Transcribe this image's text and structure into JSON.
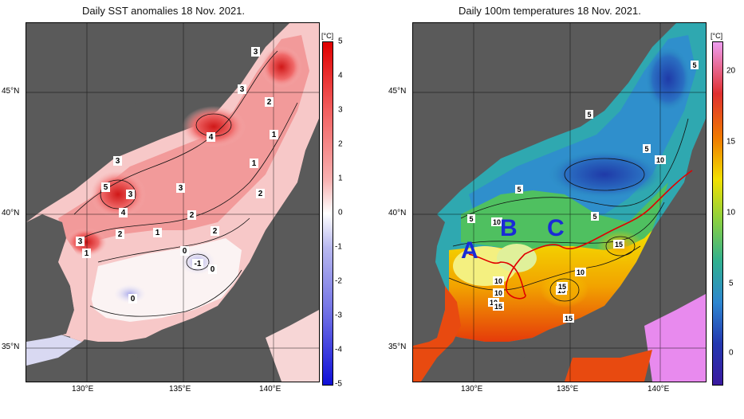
{
  "left_panel": {
    "title": "Daily SST anomalies 18 Nov. 2021.",
    "unit": "[°C]",
    "colorbar_ticks": [
      "5",
      "4",
      "3",
      "2",
      "1",
      "0",
      "-1",
      "-2",
      "-3",
      "-4",
      "-5"
    ],
    "lat_labels": [
      "45°N",
      "40°N",
      "35°N"
    ],
    "lon_labels": [
      "130°E",
      "135°E",
      "140°E"
    ],
    "contour_labels": [
      "3",
      "3",
      "2",
      "1",
      "1",
      "2",
      "4",
      "3",
      "5",
      "3",
      "4",
      "3",
      "2",
      "2",
      "1",
      "3",
      "1",
      "2",
      "0",
      "-1",
      "0",
      "0",
      "1"
    ]
  },
  "right_panel": {
    "title": "Daily 100m temperatures 18 Nov. 2021.",
    "unit": "[°C]",
    "colorbar_ticks": [
      "20",
      "15",
      "10",
      "5",
      "0"
    ],
    "lat_labels": [
      "45°N",
      "40°N",
      "35°N"
    ],
    "lon_labels": [
      "130°E",
      "135°E",
      "140°E"
    ],
    "contour_labels": [
      "5",
      "5",
      "5",
      "10",
      "5",
      "5",
      "10",
      "10",
      "10",
      "15",
      "15",
      "10",
      "15",
      "15",
      "5",
      "10",
      "15",
      "5"
    ],
    "region_labels": [
      "A",
      "B",
      "C"
    ]
  },
  "colors": {
    "land": "#5a5a5a",
    "warm_strong": "#e02020",
    "cool_strong": "#1a2bd6",
    "track": "#e00000"
  }
}
